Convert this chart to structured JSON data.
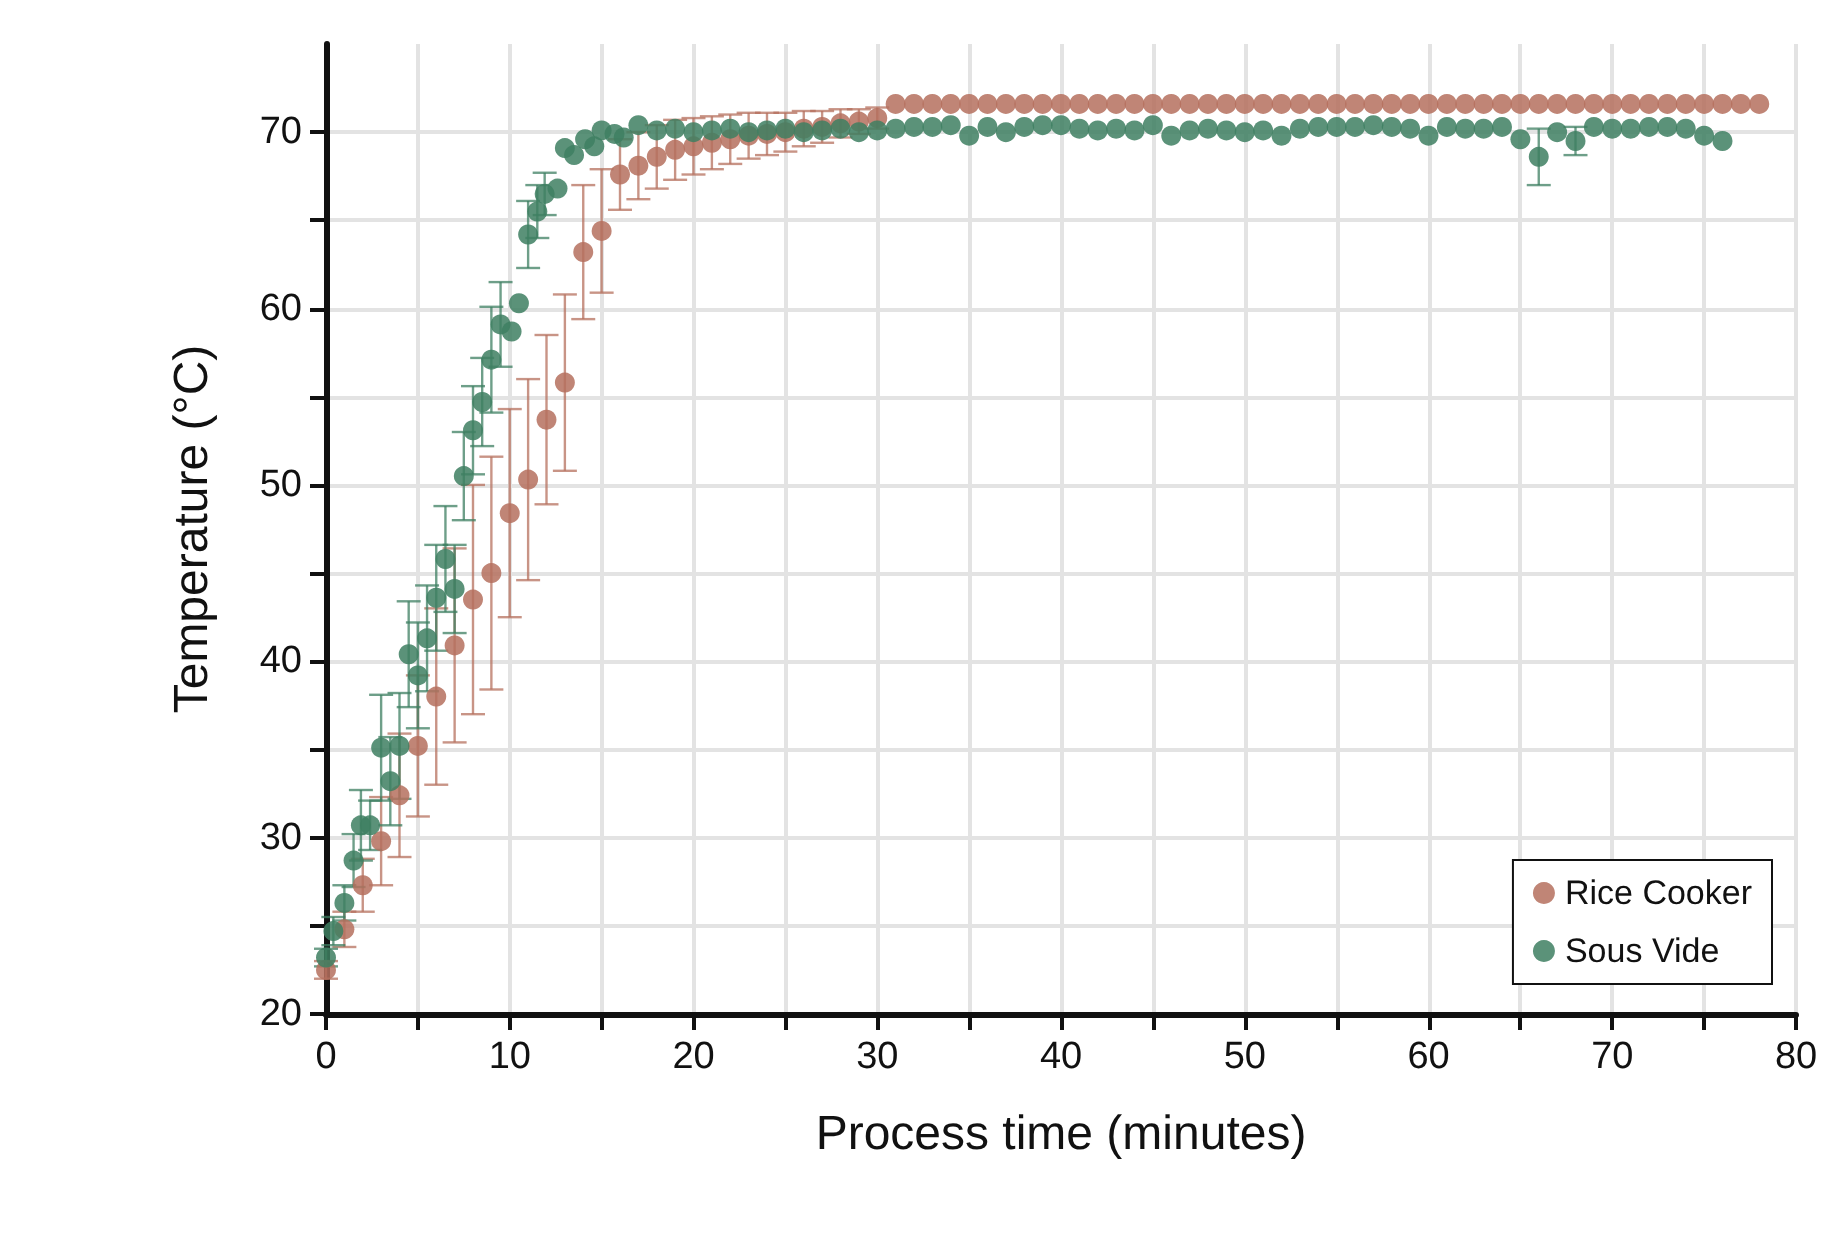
{
  "chart_data": {
    "type": "scatter",
    "xlabel": "Process time (minutes)",
    "ylabel": "Temperature (°C)",
    "xlim": [
      0,
      80
    ],
    "xticks": [
      0,
      {
        "value": 5,
        "label": null
      },
      10,
      {
        "value": 15,
        "label": null
      },
      20,
      {
        "value": 25,
        "label": null
      },
      30,
      {
        "value": 35,
        "label": null
      },
      40,
      {
        "value": 45,
        "label": null
      },
      50,
      {
        "value": 55,
        "label": null
      },
      60,
      {
        "value": 65,
        "label": null
      },
      70,
      {
        "value": 75,
        "label": null
      },
      80
    ],
    "ylim": [
      20,
      75
    ],
    "yticks": [
      20,
      {
        "value": 25,
        "label": null
      },
      30,
      {
        "value": 35,
        "label": null
      },
      40,
      {
        "value": 45,
        "label": null
      },
      50,
      {
        "value": 55,
        "label": null
      },
      60,
      {
        "value": 65,
        "label": null
      },
      70
    ],
    "grid": true,
    "legend": "bottom right",
    "marker": "circle",
    "series": [
      {
        "name": "Rice Cooker",
        "color": "#b5705e",
        "x": [
          0,
          1,
          2,
          3,
          4,
          5,
          6,
          7,
          8,
          9,
          10,
          11,
          12,
          13,
          14,
          15,
          16,
          17,
          18,
          19,
          20,
          21,
          22,
          23,
          24,
          25,
          26,
          27,
          28,
          29,
          30,
          31,
          32,
          33,
          34,
          35,
          36,
          37,
          38,
          39,
          40,
          41,
          42,
          43,
          44,
          45,
          46,
          47,
          48,
          49,
          50,
          51,
          52,
          53,
          54,
          55,
          56,
          57,
          58,
          59,
          60,
          61,
          62,
          63,
          64,
          65,
          66,
          67,
          68,
          69,
          70,
          71,
          72,
          73,
          74,
          75,
          76,
          77,
          78
        ],
        "values": [
          22.5,
          24.8,
          27.3,
          29.8,
          32.4,
          35.2,
          38.0,
          40.9,
          43.5,
          45.0,
          48.4,
          50.3,
          53.7,
          55.8,
          63.2,
          64.4,
          67.6,
          68.1,
          68.6,
          69.0,
          69.2,
          69.4,
          69.6,
          69.8,
          69.9,
          70.0,
          70.2,
          70.3,
          70.5,
          70.6,
          70.8,
          71.6,
          71.6,
          71.6,
          71.6,
          71.6,
          71.6,
          71.6,
          71.6,
          71.6,
          71.6,
          71.6,
          71.6,
          71.6,
          71.6,
          71.6,
          71.6,
          71.6,
          71.6,
          71.6,
          71.6,
          71.6,
          71.6,
          71.6,
          71.6,
          71.6,
          71.6,
          71.6,
          71.6,
          71.6,
          71.6,
          71.6,
          71.6,
          71.6,
          71.6,
          71.6,
          71.6,
          71.6,
          71.6,
          71.6,
          71.6,
          71.6,
          71.6,
          71.6,
          71.6,
          71.6,
          71.6,
          71.6,
          71.6
        ],
        "errors": [
          0.5,
          1,
          1.5,
          2.5,
          3.5,
          4,
          5,
          5.5,
          6.5,
          6.6,
          5.9,
          5.7,
          4.8,
          5,
          3.8,
          3.5,
          2,
          1.9,
          1.8,
          1.7,
          1.6,
          1.5,
          1.4,
          1.3,
          1.2,
          1.1,
          1,
          0.9,
          0.8,
          0.7,
          0.6,
          null,
          null,
          null,
          null,
          null,
          null,
          null,
          null,
          null,
          null,
          null,
          null,
          null,
          null,
          null,
          null,
          null,
          null,
          null,
          null,
          null,
          null,
          null,
          null,
          null,
          null,
          null,
          null,
          null,
          null,
          null,
          null,
          null,
          null,
          null,
          null,
          null,
          null,
          null,
          null,
          null,
          null,
          null,
          null,
          null,
          null,
          null,
          null
        ]
      },
      {
        "name": "Sous Vide",
        "color": "#3e7f62",
        "x": [
          0,
          0.4,
          1,
          1.5,
          1.9,
          2.4,
          3,
          3.5,
          4,
          4.5,
          5,
          5.5,
          6,
          6.5,
          7,
          7.5,
          8,
          8.5,
          9,
          9.5,
          10.1,
          10.5,
          11,
          11.5,
          11.9,
          12.6,
          13,
          13.5,
          14.1,
          14.6,
          15,
          15.7,
          16.2,
          17,
          18,
          19,
          20,
          21,
          22,
          23,
          24,
          25,
          26,
          27,
          28,
          29,
          30,
          31,
          32,
          33,
          34,
          35,
          36,
          37,
          38,
          39,
          40,
          41,
          42,
          43,
          44,
          45,
          46,
          47,
          48,
          49,
          50,
          51,
          52,
          53,
          54,
          55,
          56,
          57,
          58,
          59,
          60,
          61,
          62,
          63,
          64,
          65,
          66,
          67,
          68,
          69,
          70,
          71,
          72,
          73,
          74,
          75,
          76
        ],
        "values": [
          23.2,
          24.7,
          26.3,
          28.7,
          30.7,
          30.7,
          35.1,
          33.2,
          35.2,
          40.4,
          39.2,
          41.3,
          43.6,
          45.8,
          44.1,
          50.5,
          53.1,
          54.7,
          57.1,
          59.1,
          58.7,
          60.3,
          64.2,
          65.5,
          66.5,
          66.8,
          69.1,
          68.7,
          69.6,
          69.2,
          70.1,
          69.9,
          69.7,
          70.4,
          70.1,
          70.2,
          70.0,
          70.1,
          70.2,
          70.0,
          70.1,
          70.2,
          70.0,
          70.1,
          70.2,
          70.0,
          70.1,
          70.2,
          70.3,
          70.3,
          70.4,
          69.8,
          70.3,
          70.0,
          70.3,
          70.4,
          70.4,
          70.2,
          70.1,
          70.2,
          70.1,
          70.4,
          69.8,
          70.1,
          70.2,
          70.1,
          70.0,
          70.1,
          69.8,
          70.2,
          70.3,
          70.3,
          70.3,
          70.4,
          70.3,
          70.2,
          69.8,
          70.3,
          70.2,
          70.2,
          70.3,
          69.6,
          68.6,
          70.0,
          69.5,
          70.3,
          70.2,
          70.2,
          70.3,
          70.3,
          70.2,
          69.8,
          69.5
        ],
        "errors": [
          0.5,
          0.8,
          1,
          1.5,
          2,
          1.4,
          3,
          2.5,
          3,
          3,
          3,
          3,
          3,
          3,
          2.5,
          2.5,
          2.5,
          2.5,
          3,
          2.4,
          null,
          null,
          1.9,
          1.5,
          1.2,
          null,
          null,
          null,
          null,
          null,
          null,
          null,
          null,
          null,
          null,
          null,
          null,
          null,
          null,
          null,
          null,
          null,
          null,
          null,
          null,
          null,
          null,
          null,
          null,
          null,
          null,
          null,
          null,
          null,
          null,
          null,
          null,
          null,
          null,
          null,
          null,
          null,
          null,
          null,
          null,
          null,
          null,
          null,
          null,
          null,
          null,
          null,
          null,
          null,
          null,
          null,
          null,
          null,
          null,
          null,
          null,
          null,
          1.6,
          null,
          0.8,
          null,
          null,
          null,
          null,
          null,
          null,
          null,
          null
        ]
      }
    ]
  }
}
